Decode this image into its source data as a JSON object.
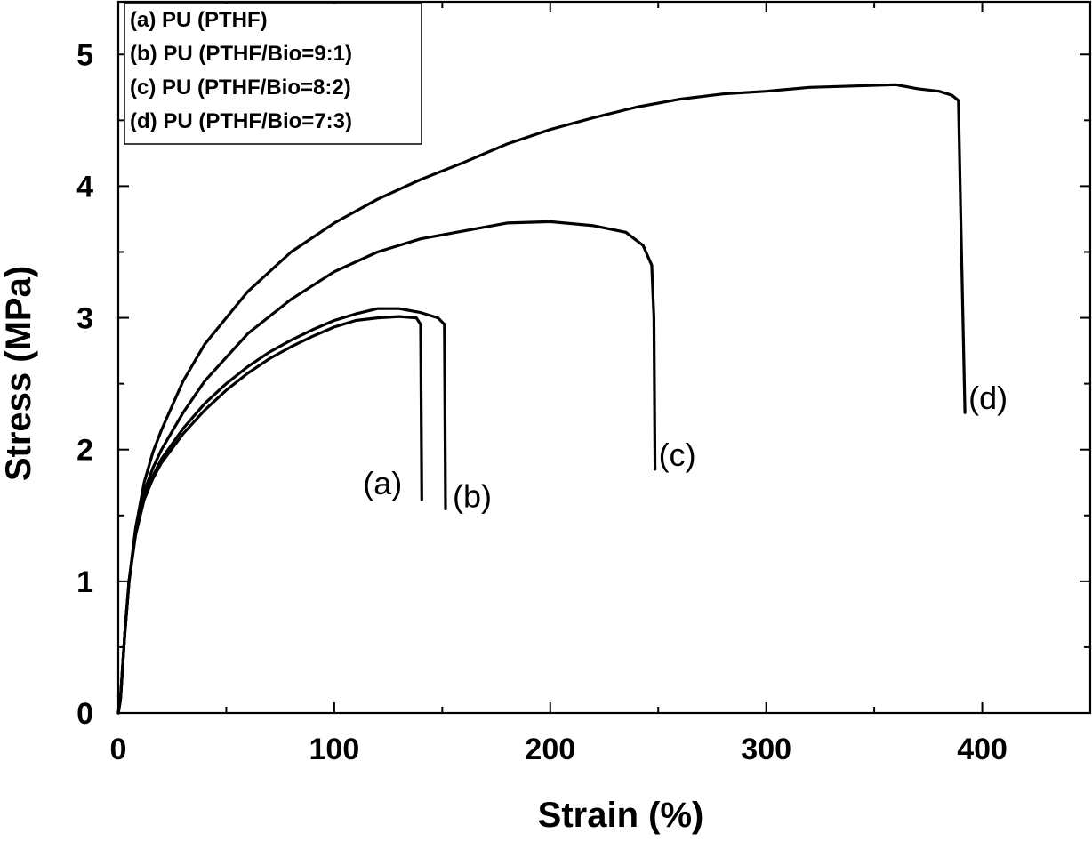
{
  "chart_data": {
    "type": "line",
    "xlabel": "Strain (%)",
    "ylabel": "Stress (MPa)",
    "xlim": [
      0,
      450
    ],
    "ylim": [
      0,
      5.4
    ],
    "x_ticks": [
      0,
      100,
      200,
      300,
      400
    ],
    "y_ticks": [
      0,
      1,
      2,
      3,
      4,
      5
    ],
    "x_minor_step": 50,
    "y_minor_step": 0.5,
    "grid": false,
    "legend_position": "top-left",
    "series": [
      {
        "name": "(a) PU (PTHF)",
        "label": "(a)",
        "x": [
          0,
          1,
          3,
          5,
          8,
          12,
          16,
          20,
          30,
          40,
          50,
          60,
          70,
          80,
          90,
          100,
          110,
          120,
          130,
          138,
          140,
          140.5
        ],
        "y": [
          0,
          0.1,
          0.6,
          1.0,
          1.35,
          1.62,
          1.78,
          1.9,
          2.12,
          2.3,
          2.45,
          2.58,
          2.69,
          2.78,
          2.86,
          2.93,
          2.98,
          3.0,
          3.01,
          3.0,
          2.95,
          1.62
        ]
      },
      {
        "name": "(b) PU (PTHF/Bio=9:1)",
        "label": "(b)",
        "x": [
          0,
          1,
          3,
          5,
          8,
          12,
          16,
          20,
          30,
          40,
          50,
          60,
          70,
          80,
          90,
          100,
          110,
          120,
          130,
          140,
          148,
          151,
          151.5
        ],
        "y": [
          0,
          0.1,
          0.6,
          1.0,
          1.36,
          1.64,
          1.8,
          1.93,
          2.16,
          2.35,
          2.5,
          2.63,
          2.74,
          2.83,
          2.91,
          2.98,
          3.03,
          3.07,
          3.07,
          3.04,
          3.0,
          2.95,
          1.55
        ]
      },
      {
        "name": "(c) PU (PTHF/Bio=8:2)",
        "label": "(c)",
        "x": [
          0,
          1,
          3,
          5,
          8,
          12,
          16,
          20,
          30,
          40,
          60,
          80,
          100,
          120,
          140,
          160,
          180,
          200,
          220,
          235,
          243,
          247,
          248,
          248.5
        ],
        "y": [
          0,
          0.1,
          0.6,
          1.0,
          1.38,
          1.68,
          1.86,
          2.0,
          2.28,
          2.52,
          2.88,
          3.14,
          3.35,
          3.5,
          3.6,
          3.66,
          3.72,
          3.73,
          3.7,
          3.65,
          3.55,
          3.4,
          3.0,
          1.85
        ]
      },
      {
        "name": "(d) PU (PTHF/Bio=7:3)",
        "label": "(d)",
        "x": [
          0,
          1,
          3,
          5,
          8,
          12,
          16,
          20,
          30,
          40,
          60,
          80,
          100,
          120,
          140,
          160,
          180,
          200,
          220,
          240,
          260,
          280,
          300,
          320,
          340,
          360,
          370,
          380,
          386,
          389,
          390,
          392
        ],
        "y": [
          0,
          0.1,
          0.6,
          1.0,
          1.4,
          1.75,
          1.98,
          2.15,
          2.52,
          2.8,
          3.2,
          3.5,
          3.72,
          3.9,
          4.05,
          4.18,
          4.32,
          4.43,
          4.52,
          4.6,
          4.66,
          4.7,
          4.72,
          4.75,
          4.76,
          4.77,
          4.74,
          4.72,
          4.69,
          4.65,
          3.8,
          2.28
        ]
      }
    ]
  }
}
